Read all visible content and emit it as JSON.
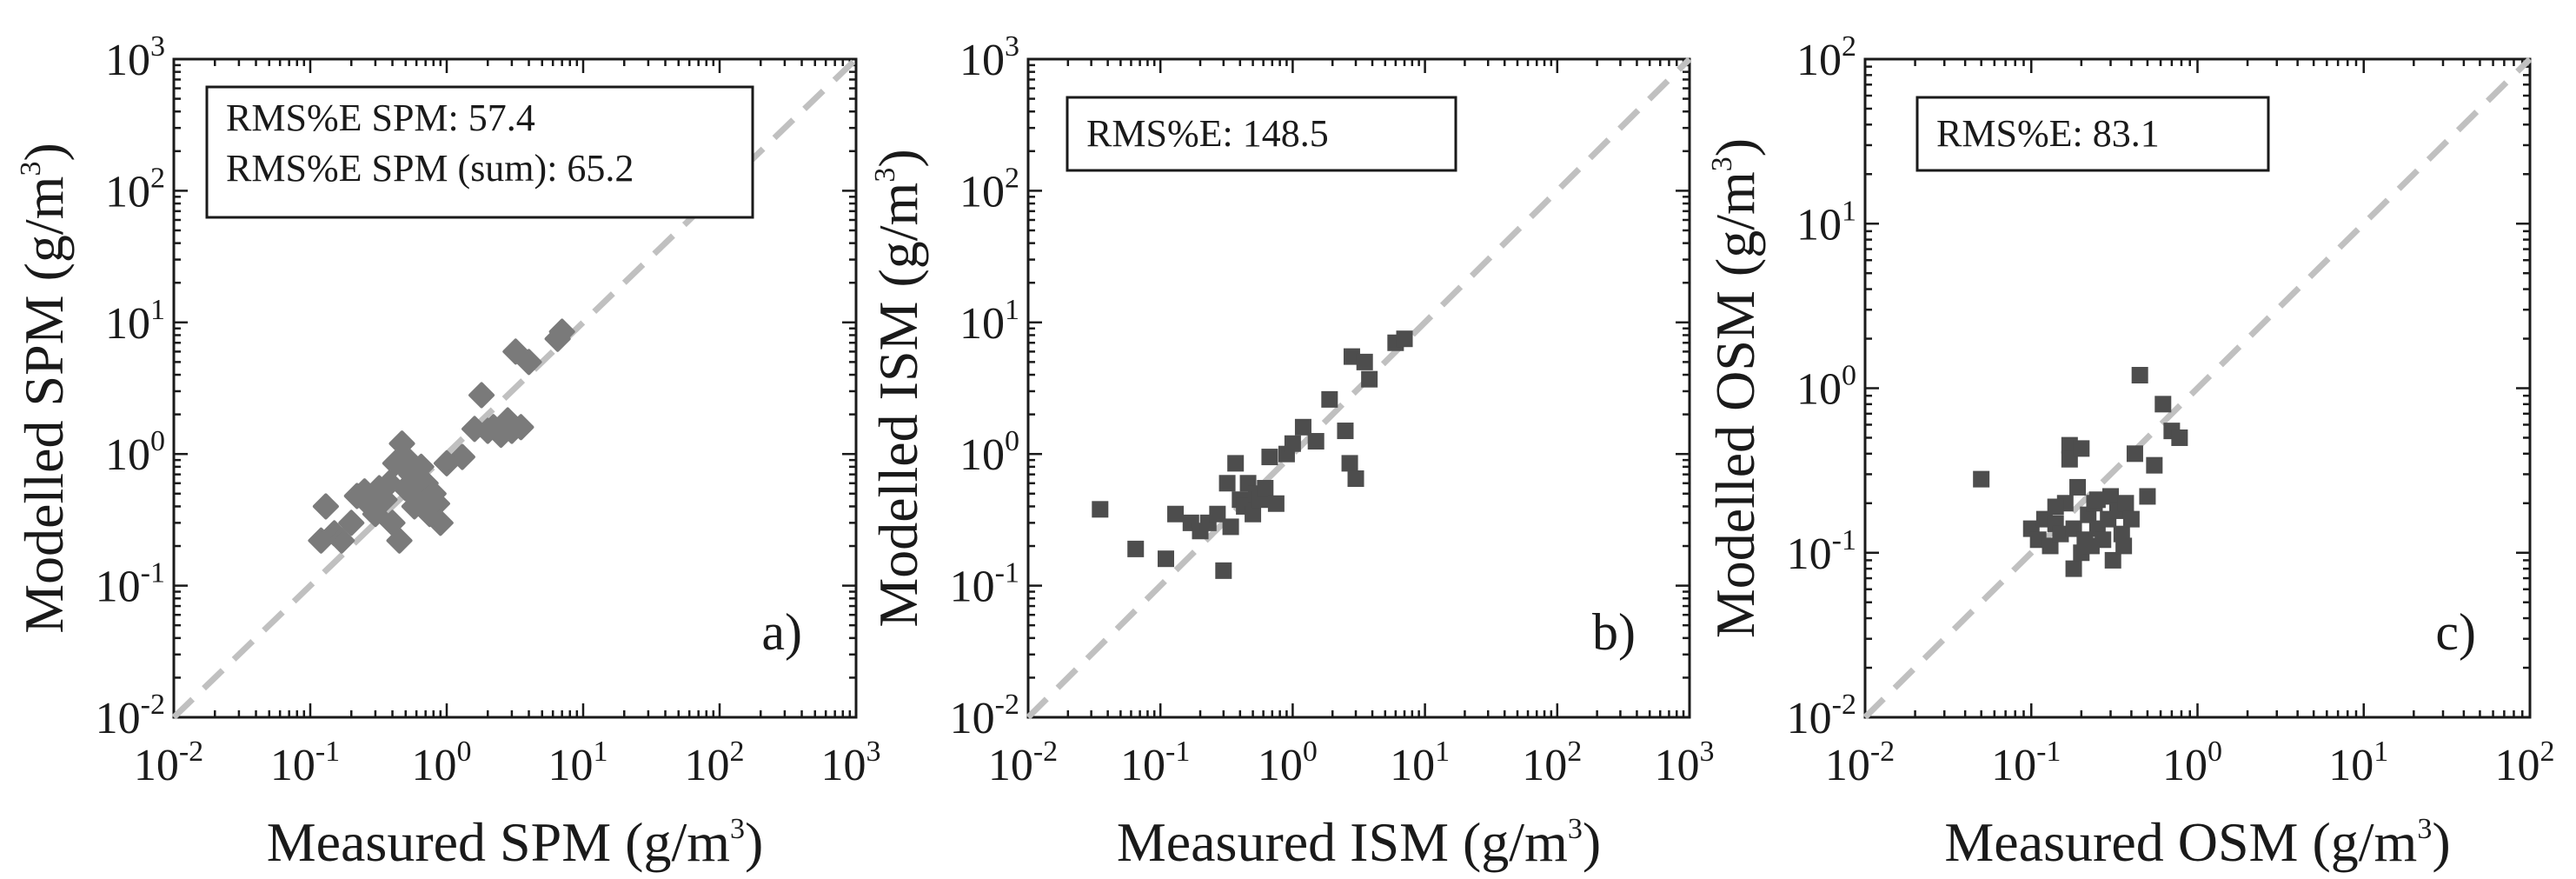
{
  "chart_data": [
    {
      "type": "scatter",
      "panel": "a)",
      "xlabel": "Measured SPM (g/m",
      "ylabel": "Modelled SPM (g/m",
      "unit_exponent": "3",
      "label_suffix": ")",
      "xlim_exp": [
        -2,
        3
      ],
      "ylim_exp": [
        -2,
        3
      ],
      "x_ticks": [
        "-2",
        "-1",
        "0",
        "1",
        "2",
        "3"
      ],
      "y_ticks": [
        "-2",
        "-1",
        "0",
        "1",
        "2",
        "3"
      ],
      "tick_base": "10",
      "stats": [
        "RMS%E SPM: 57.4",
        "RMS%E SPM (sum): 65.2"
      ],
      "marker": "diamond",
      "marker_color": "#7a7a7a",
      "line_color": "#c0c0c0",
      "points": [
        [
          0.12,
          0.22
        ],
        [
          0.13,
          0.4
        ],
        [
          0.15,
          0.25
        ],
        [
          0.17,
          0.22
        ],
        [
          0.2,
          0.3
        ],
        [
          0.22,
          0.48
        ],
        [
          0.25,
          0.52
        ],
        [
          0.28,
          0.4
        ],
        [
          0.3,
          0.35
        ],
        [
          0.32,
          0.55
        ],
        [
          0.35,
          0.45
        ],
        [
          0.38,
          0.6
        ],
        [
          0.4,
          0.3
        ],
        [
          0.42,
          0.85
        ],
        [
          0.45,
          0.22
        ],
        [
          0.47,
          1.2
        ],
        [
          0.5,
          0.55
        ],
        [
          0.52,
          0.9
        ],
        [
          0.55,
          0.7
        ],
        [
          0.58,
          0.4
        ],
        [
          0.6,
          0.65
        ],
        [
          0.62,
          0.5
        ],
        [
          0.65,
          0.8
        ],
        [
          0.68,
          0.45
        ],
        [
          0.7,
          0.6
        ],
        [
          0.75,
          0.35
        ],
        [
          0.8,
          0.5
        ],
        [
          0.85,
          0.42
        ],
        [
          0.9,
          0.3
        ],
        [
          1.0,
          0.85
        ],
        [
          1.3,
          0.95
        ],
        [
          1.6,
          1.55
        ],
        [
          1.8,
          2.8
        ],
        [
          2.0,
          1.5
        ],
        [
          2.2,
          1.6
        ],
        [
          2.5,
          1.4
        ],
        [
          2.8,
          1.8
        ],
        [
          3.0,
          1.5
        ],
        [
          3.2,
          6.0
        ],
        [
          3.5,
          1.6
        ],
        [
          4.0,
          5.0
        ],
        [
          6.5,
          7.5
        ],
        [
          7.0,
          8.5
        ]
      ]
    },
    {
      "type": "scatter",
      "panel": "b)",
      "xlabel": "Measured ISM (g/m",
      "ylabel": "Modelled ISM (g/m",
      "unit_exponent": "3",
      "label_suffix": ")",
      "xlim_exp": [
        -2,
        3
      ],
      "ylim_exp": [
        -2,
        3
      ],
      "x_ticks": [
        "-2",
        "-1",
        "0",
        "1",
        "2",
        "3"
      ],
      "y_ticks": [
        "-2",
        "-1",
        "0",
        "1",
        "2",
        "3"
      ],
      "tick_base": "10",
      "stats": [
        "RMS%E: 148.5"
      ],
      "marker": "square",
      "marker_color": "#4d4d4d",
      "line_color": "#c0c0c0",
      "points": [
        [
          0.035,
          0.38
        ],
        [
          0.065,
          0.19
        ],
        [
          0.11,
          0.16
        ],
        [
          0.13,
          0.35
        ],
        [
          0.17,
          0.3
        ],
        [
          0.2,
          0.26
        ],
        [
          0.23,
          0.3
        ],
        [
          0.27,
          0.35
        ],
        [
          0.3,
          0.13
        ],
        [
          0.32,
          0.6
        ],
        [
          0.34,
          0.28
        ],
        [
          0.37,
          0.85
        ],
        [
          0.4,
          0.45
        ],
        [
          0.43,
          0.4
        ],
        [
          0.46,
          0.6
        ],
        [
          0.5,
          0.35
        ],
        [
          0.53,
          0.5
        ],
        [
          0.57,
          0.45
        ],
        [
          0.62,
          0.55
        ],
        [
          0.67,
          0.95
        ],
        [
          0.75,
          0.42
        ],
        [
          0.9,
          1.0
        ],
        [
          1.0,
          1.2
        ],
        [
          1.2,
          1.6
        ],
        [
          1.5,
          1.25
        ],
        [
          1.9,
          2.6
        ],
        [
          2.5,
          1.5
        ],
        [
          2.7,
          0.85
        ],
        [
          2.8,
          5.5
        ],
        [
          3.0,
          0.65
        ],
        [
          3.5,
          5.0
        ],
        [
          3.8,
          3.7
        ],
        [
          6.0,
          7.0
        ],
        [
          7.0,
          7.5
        ]
      ]
    },
    {
      "type": "scatter",
      "panel": "c)",
      "xlabel": "Measured OSM (g/m",
      "ylabel": "Modelled OSM (g/m",
      "unit_exponent": "3",
      "label_suffix": ")",
      "xlim_exp": [
        -2,
        2
      ],
      "ylim_exp": [
        -2,
        2
      ],
      "x_ticks": [
        "-2",
        "-1",
        "0",
        "1",
        "2"
      ],
      "y_ticks": [
        "-2",
        "-1",
        "0",
        "1",
        "2"
      ],
      "tick_base": "10",
      "stats": [
        "RMS%E: 83.1"
      ],
      "marker": "square",
      "marker_color": "#4d4d4d",
      "line_color": "#c0c0c0",
      "points": [
        [
          0.05,
          0.28
        ],
        [
          0.1,
          0.14
        ],
        [
          0.11,
          0.12
        ],
        [
          0.12,
          0.16
        ],
        [
          0.13,
          0.11
        ],
        [
          0.14,
          0.15
        ],
        [
          0.15,
          0.13
        ],
        [
          0.16,
          0.2
        ],
        [
          0.17,
          0.45
        ],
        [
          0.17,
          0.37
        ],
        [
          0.18,
          0.08
        ],
        [
          0.18,
          0.14
        ],
        [
          0.19,
          0.25
        ],
        [
          0.2,
          0.1
        ],
        [
          0.2,
          0.43
        ],
        [
          0.21,
          0.12
        ],
        [
          0.22,
          0.17
        ],
        [
          0.23,
          0.11
        ],
        [
          0.24,
          0.2
        ],
        [
          0.25,
          0.14
        ],
        [
          0.27,
          0.12
        ],
        [
          0.29,
          0.16
        ],
        [
          0.3,
          0.22
        ],
        [
          0.31,
          0.09
        ],
        [
          0.33,
          0.18
        ],
        [
          0.35,
          0.13
        ],
        [
          0.37,
          0.2
        ],
        [
          0.4,
          0.16
        ],
        [
          0.42,
          0.4
        ],
        [
          0.45,
          1.2
        ],
        [
          0.5,
          0.22
        ],
        [
          0.55,
          0.34
        ],
        [
          0.62,
          0.8
        ],
        [
          0.7,
          0.55
        ],
        [
          0.78,
          0.5
        ],
        [
          0.25,
          0.21
        ],
        [
          0.14,
          0.19
        ],
        [
          0.36,
          0.11
        ]
      ]
    }
  ]
}
